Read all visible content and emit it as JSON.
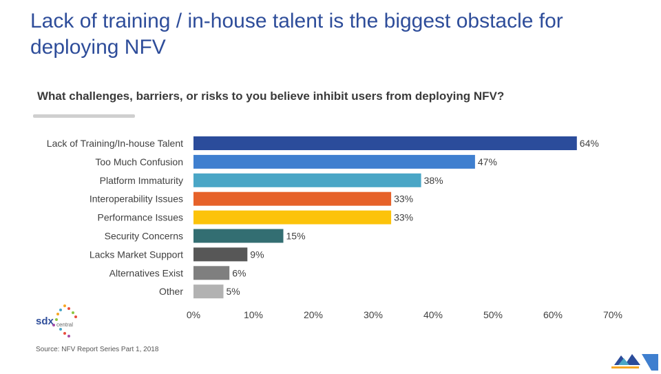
{
  "header": {
    "title": "Lack of training / in-house talent is the biggest obstacle for deploying NFV",
    "question": "What challenges, barriers, or risks to you believe inhibit users from deploying NFV?"
  },
  "footer": {
    "source": "Source: NFV Report Series Part 1, 2018",
    "logo_text": "sdx",
    "logo_subtext": "central"
  },
  "chart_data": {
    "type": "bar",
    "orientation": "horizontal",
    "title": "What challenges, barriers, or risks to you believe inhibit users from deploying NFV?",
    "xlabel": "",
    "ylabel": "",
    "xlim": [
      0,
      70
    ],
    "grid": false,
    "categories": [
      "Lack of Training/In-house Talent",
      "Too Much Confusion",
      "Platform Immaturity",
      "Interoperability Issues",
      "Performance Issues",
      "Security Concerns",
      "Lacks Market Support",
      "Alternatives Exist",
      "Other"
    ],
    "values": [
      64,
      47,
      38,
      33,
      33,
      15,
      9,
      6,
      5
    ],
    "value_labels": [
      "64%",
      "47%",
      "38%",
      "33%",
      "33%",
      "15%",
      "9%",
      "6%",
      "5%"
    ],
    "bar_colors": [
      "#2b4c9b",
      "#3f7fcf",
      "#4aa6c6",
      "#e6622a",
      "#fcc30a",
      "#336e72",
      "#575757",
      "#7f7f7f",
      "#b2b2b2"
    ],
    "x_ticks": [
      0,
      10,
      20,
      30,
      40,
      50,
      60,
      70
    ],
    "x_tick_labels": [
      "0%",
      "10%",
      "20%",
      "30%",
      "40%",
      "50%",
      "60%",
      "70%"
    ]
  }
}
